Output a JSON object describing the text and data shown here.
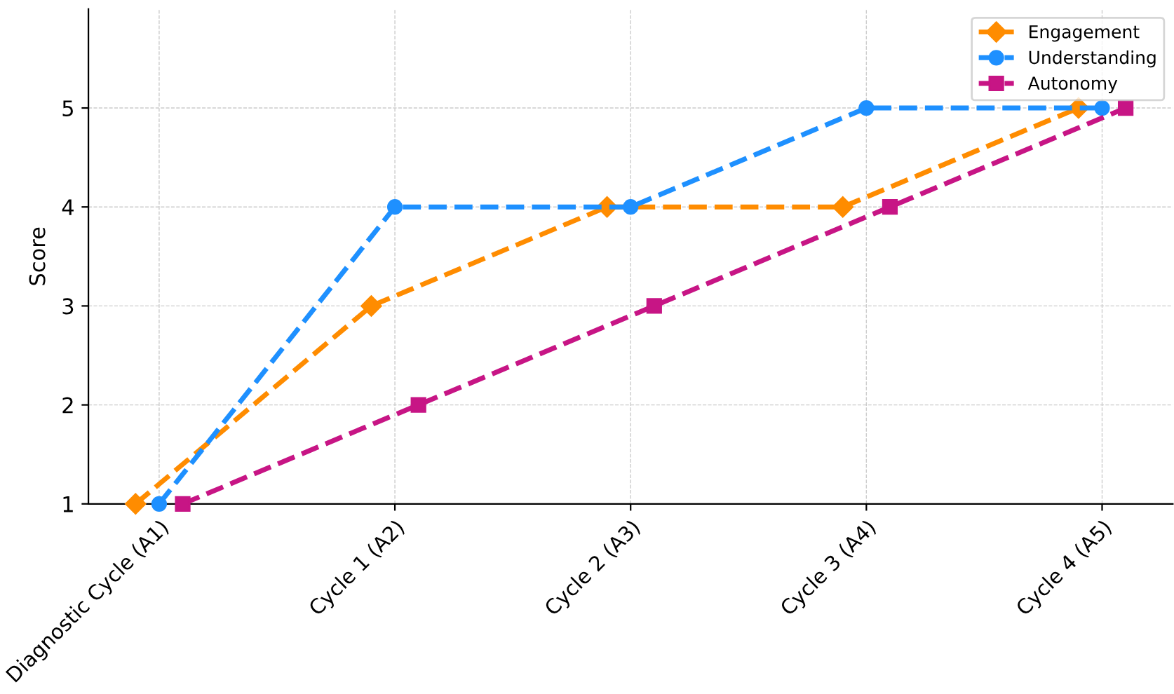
{
  "chart_data": {
    "type": "line",
    "ylabel": "Score",
    "ylim": [
      1,
      6
    ],
    "yticks": [
      1,
      2,
      3,
      4,
      5
    ],
    "categories": [
      "Diagnostic Cycle (A1)",
      "Cycle 1 (A2)",
      "Cycle 2 (A3)",
      "Cycle 3 (A4)",
      "Cycle 4 (A5)"
    ],
    "grid": true,
    "legend": "top right",
    "line_style": "dashed",
    "series": [
      {
        "name": "Engagement",
        "color": "#ff8c00",
        "marker": "diamond",
        "values": [
          1,
          3,
          4,
          4,
          5
        ]
      },
      {
        "name": "Understanding",
        "color": "#1e90ff",
        "marker": "circle",
        "values": [
          1,
          4,
          4,
          5,
          5
        ]
      },
      {
        "name": "Autonomy",
        "color": "#c71585",
        "marker": "square",
        "values": [
          1,
          2,
          3,
          4,
          5
        ]
      }
    ]
  }
}
